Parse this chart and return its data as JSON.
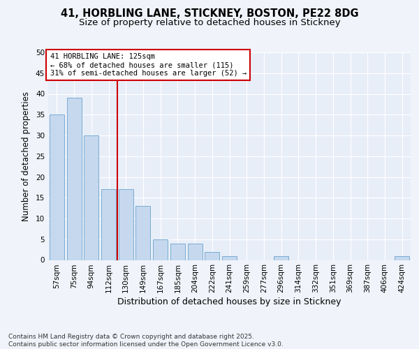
{
  "title1": "41, HORBLING LANE, STICKNEY, BOSTON, PE22 8DG",
  "title2": "Size of property relative to detached houses in Stickney",
  "xlabel": "Distribution of detached houses by size in Stickney",
  "ylabel": "Number of detached properties",
  "categories": [
    "57sqm",
    "75sqm",
    "94sqm",
    "112sqm",
    "130sqm",
    "149sqm",
    "167sqm",
    "185sqm",
    "204sqm",
    "222sqm",
    "241sqm",
    "259sqm",
    "277sqm",
    "296sqm",
    "314sqm",
    "332sqm",
    "351sqm",
    "369sqm",
    "387sqm",
    "406sqm",
    "424sqm"
  ],
  "values": [
    35,
    39,
    30,
    17,
    17,
    13,
    5,
    4,
    4,
    2,
    1,
    0,
    0,
    1,
    0,
    0,
    0,
    0,
    0,
    0,
    1
  ],
  "bar_color": "#c5d8ee",
  "bar_edge_color": "#7aadd4",
  "ref_line_x": 3.5,
  "ref_line_label": "41 HORBLING LANE: 125sqm",
  "annotation_line1": "← 68% of detached houses are smaller (115)",
  "annotation_line2": "31% of semi-detached houses are larger (52) →",
  "annotation_box_color": "#ffffff",
  "annotation_box_edge_color": "#cc0000",
  "ref_line_color": "#cc0000",
  "ylim": [
    0,
    50
  ],
  "yticks": [
    0,
    5,
    10,
    15,
    20,
    25,
    30,
    35,
    40,
    45,
    50
  ],
  "bg_color": "#f0f4fa",
  "plot_bg_color": "#e8eef8",
  "grid_color": "#ffffff",
  "footer": "Contains HM Land Registry data © Crown copyright and database right 2025.\nContains public sector information licensed under the Open Government Licence v3.0.",
  "title1_fontsize": 10.5,
  "title2_fontsize": 9.5,
  "xlabel_fontsize": 9,
  "ylabel_fontsize": 8.5,
  "tick_fontsize": 7.5,
  "footer_fontsize": 6.5,
  "ann_fontsize": 7.5
}
